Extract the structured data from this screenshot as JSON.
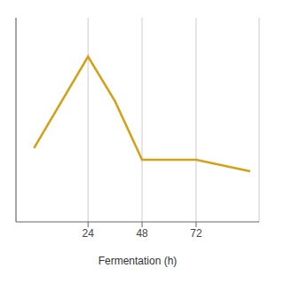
{
  "chart_data": {
    "type": "line",
    "x": [
      0,
      24,
      36,
      48,
      72,
      96
    ],
    "values": [
      3.8,
      8.5,
      6.2,
      3.2,
      3.2,
      2.6
    ],
    "color": "#D4A017",
    "xlabel": "Fermentation (h)",
    "xlim": [
      -8,
      100
    ],
    "xticks": [
      24,
      48,
      72
    ],
    "ylim": [
      0,
      10.5
    ],
    "grid": true,
    "tick_labels": "x"
  }
}
